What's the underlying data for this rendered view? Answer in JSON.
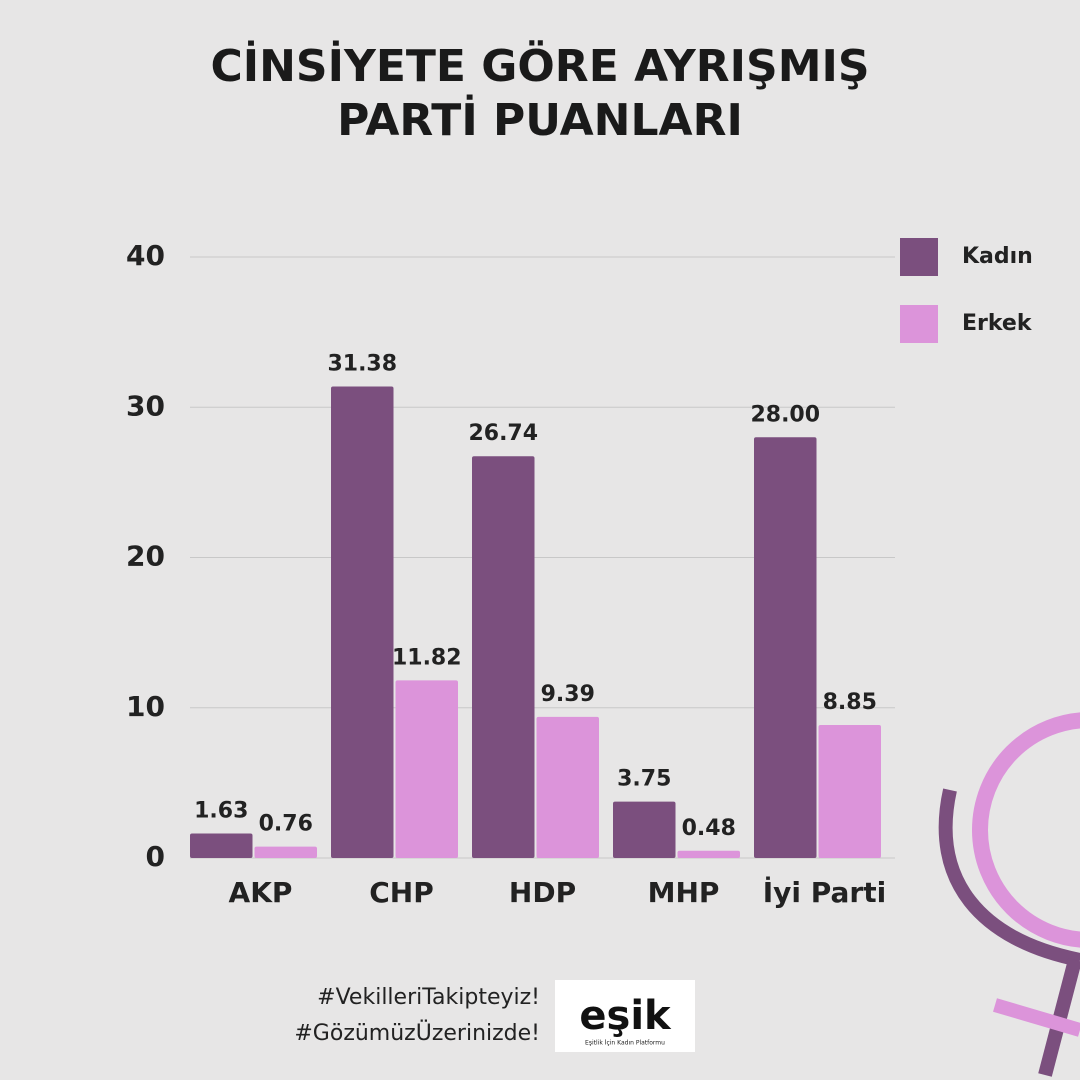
{
  "chart_data": {
    "type": "bar",
    "title": "CİNSİYETE GÖRE AYRIŞMIŞ PARTİ PUANLARI",
    "categories": [
      "AKP",
      "CHP",
      "HDP",
      "MHP",
      "İyi Parti"
    ],
    "series": [
      {
        "name": "Kadın",
        "color": "#7b4f7e",
        "values": [
          1.63,
          31.38,
          26.74,
          3.75,
          28.0
        ],
        "value_labels": [
          "1.63",
          "31.38",
          "26.74",
          "3.75",
          "28.00"
        ]
      },
      {
        "name": "Erkek",
        "color": "#dc94da",
        "values": [
          0.76,
          11.82,
          9.39,
          0.48,
          8.85
        ],
        "value_labels": [
          "0.76",
          "11.82",
          "9.39",
          "0.48",
          "8.85"
        ]
      }
    ],
    "ylim": [
      0,
      40
    ],
    "yticks": [
      0,
      10,
      20,
      30,
      40
    ],
    "grid": true,
    "legend": "top-right"
  },
  "footer": {
    "hashtags": [
      "#VekilleriTakipteyiz!",
      "#GözümüzÜzerinizde!"
    ],
    "logo": {
      "name": "eşik",
      "tagline": "Eşitlik İçin Kadın Platformu"
    }
  }
}
